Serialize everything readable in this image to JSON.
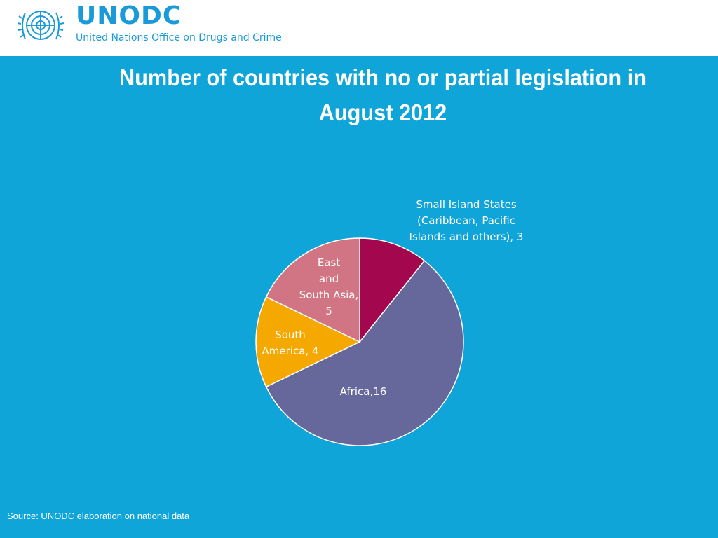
{
  "header": {
    "brand_name": "UNODC",
    "brand_subtitle": "United Nations Office on Drugs and Crime"
  },
  "slide": {
    "title_line1": "Number of countries with no or partial legislation in",
    "title_line2": "August 2012",
    "source": "Source: UNODC elaboration on national data",
    "background_color": "#10a5d8"
  },
  "chart_data": {
    "type": "pie",
    "title": "Number of countries with no or partial legislation in August 2012",
    "slices": [
      {
        "category": "Small Island States (Caribbean, Pacific Islands and others)",
        "value": 3,
        "color": "#a3084e",
        "label_lines": [
          "Small Island States",
          "(Caribbean, Pacific",
          "Islands and others), 3"
        ]
      },
      {
        "category": "Africa",
        "value": 16,
        "color": "#66679a",
        "label_lines": [
          "Africa,16"
        ]
      },
      {
        "category": "South America",
        "value": 4,
        "color": "#f5a800",
        "label_lines": [
          "South",
          "America, 4"
        ]
      },
      {
        "category": "East and South Asia",
        "value": 5,
        "color": "#d17585",
        "label_lines": [
          "East",
          "and",
          "South Asia,",
          "5"
        ]
      }
    ],
    "start_angle_deg": 0,
    "direction": "clockwise",
    "legend": "none"
  }
}
